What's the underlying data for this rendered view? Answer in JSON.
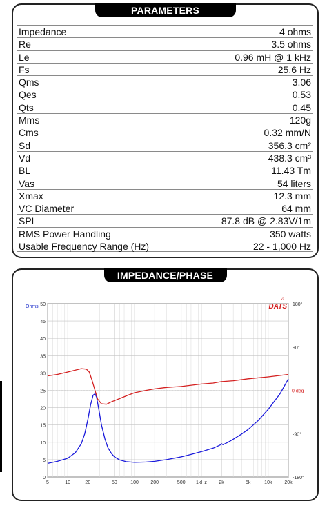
{
  "parameters": {
    "title": "PARAMETERS",
    "rows": [
      {
        "label": "Impedance",
        "value": "4 ohms"
      },
      {
        "label": "Re",
        "value": "3.5 ohms"
      },
      {
        "label": "Le",
        "value": "0.96 mH @ 1 kHz"
      },
      {
        "label": "Fs",
        "value": "25.6 Hz"
      },
      {
        "label": "Qms",
        "value": "3.06"
      },
      {
        "label": "Qes",
        "value": "0.53"
      },
      {
        "label": "Qts",
        "value": "0.45"
      },
      {
        "label": "Mms",
        "value": "120g"
      },
      {
        "label": "Cms",
        "value": "0.32 mm/N"
      },
      {
        "label": "Sd",
        "value": "356.3 cm²"
      },
      {
        "label": "Vd",
        "value": "438.3 cm³"
      },
      {
        "label": "BL",
        "value": "11.43 Tm"
      },
      {
        "label": "Vas",
        "value": "54 liters"
      },
      {
        "label": "Xmax",
        "value": "12.3 mm"
      },
      {
        "label": "VC Diameter",
        "value": "64 mm"
      },
      {
        "label": "SPL",
        "value": "87.8 dB @ 2.83V/1m"
      },
      {
        "label": "RMS Power Handling",
        "value": "350 watts"
      },
      {
        "label": "Usable Frequency Range (Hz)",
        "value": "22 - 1,000 Hz"
      }
    ]
  },
  "chart_section": {
    "title": "IMPEDANCE/PHASE",
    "brand": "DATS",
    "brand_superscript": "V3",
    "colors": {
      "impedance": "#1a1adb",
      "phase": "#d42020",
      "brand": "#d42020"
    }
  },
  "chart_data": {
    "type": "line",
    "x_scale": "log",
    "xlim": [
      5,
      20000
    ],
    "ylim": [
      0,
      50
    ],
    "y2lim": [
      -180,
      180
    ],
    "grid": true,
    "ylabel": "Ohms",
    "y2label": "0 deg",
    "x_ticks": [
      {
        "value": 5,
        "label": "5"
      },
      {
        "value": 10,
        "label": "10"
      },
      {
        "value": 20,
        "label": "20"
      },
      {
        "value": 50,
        "label": "50"
      },
      {
        "value": 100,
        "label": "100"
      },
      {
        "value": 200,
        "label": "200"
      },
      {
        "value": 500,
        "label": "500"
      },
      {
        "value": 1000,
        "label": "1kHz"
      },
      {
        "value": 2000,
        "label": "2k"
      },
      {
        "value": 5000,
        "label": "5k"
      },
      {
        "value": 10000,
        "label": "10k"
      },
      {
        "value": 20000,
        "label": "20k"
      }
    ],
    "y_ticks": [
      0,
      5,
      10,
      15,
      20,
      25,
      30,
      35,
      40,
      45,
      50
    ],
    "y2_ticks": [
      {
        "value": 180,
        "label": "180°"
      },
      {
        "value": 90,
        "label": "90°"
      },
      {
        "value": -90,
        "label": "-90°"
      },
      {
        "value": -180,
        "label": "-180°"
      }
    ],
    "series": [
      {
        "key": "impedance",
        "axis": "left",
        "points": [
          [
            5,
            3.9
          ],
          [
            7,
            4.5
          ],
          [
            10,
            5.4
          ],
          [
            13,
            7.0
          ],
          [
            16,
            9.6
          ],
          [
            18,
            12.5
          ],
          [
            20,
            16.5
          ],
          [
            22,
            20.8
          ],
          [
            24,
            23.6
          ],
          [
            25.6,
            24.0
          ],
          [
            27,
            23.0
          ],
          [
            29,
            19.8
          ],
          [
            32,
            15.0
          ],
          [
            36,
            11.0
          ],
          [
            40,
            8.4
          ],
          [
            45,
            6.8
          ],
          [
            50,
            5.8
          ],
          [
            60,
            4.9
          ],
          [
            75,
            4.4
          ],
          [
            100,
            4.2
          ],
          [
            150,
            4.3
          ],
          [
            200,
            4.5
          ],
          [
            300,
            5.0
          ],
          [
            500,
            5.8
          ],
          [
            700,
            6.5
          ],
          [
            1000,
            7.3
          ],
          [
            1500,
            8.3
          ],
          [
            1900,
            9.2
          ],
          [
            2000,
            9.6
          ],
          [
            2100,
            9.3
          ],
          [
            2500,
            10.0
          ],
          [
            3000,
            10.9
          ],
          [
            4000,
            12.4
          ],
          [
            5000,
            13.7
          ],
          [
            7000,
            16.2
          ],
          [
            10000,
            19.5
          ],
          [
            15000,
            24.0
          ],
          [
            20000,
            28.3
          ]
        ]
      },
      {
        "key": "phase",
        "axis": "right",
        "points": [
          [
            5,
            30
          ],
          [
            7,
            33
          ],
          [
            10,
            38
          ],
          [
            13,
            42
          ],
          [
            16,
            45
          ],
          [
            19,
            44
          ],
          [
            21,
            38
          ],
          [
            23,
            22
          ],
          [
            25.6,
            0
          ],
          [
            28,
            -18
          ],
          [
            32,
            -28
          ],
          [
            38,
            -29
          ],
          [
            45,
            -24
          ],
          [
            60,
            -17
          ],
          [
            80,
            -10
          ],
          [
            100,
            -5
          ],
          [
            150,
            0
          ],
          [
            200,
            3
          ],
          [
            300,
            6
          ],
          [
            500,
            8
          ],
          [
            1000,
            13
          ],
          [
            1500,
            15
          ],
          [
            2000,
            18
          ],
          [
            3000,
            20
          ],
          [
            5000,
            24
          ],
          [
            10000,
            28
          ],
          [
            20000,
            33
          ]
        ]
      }
    ]
  }
}
